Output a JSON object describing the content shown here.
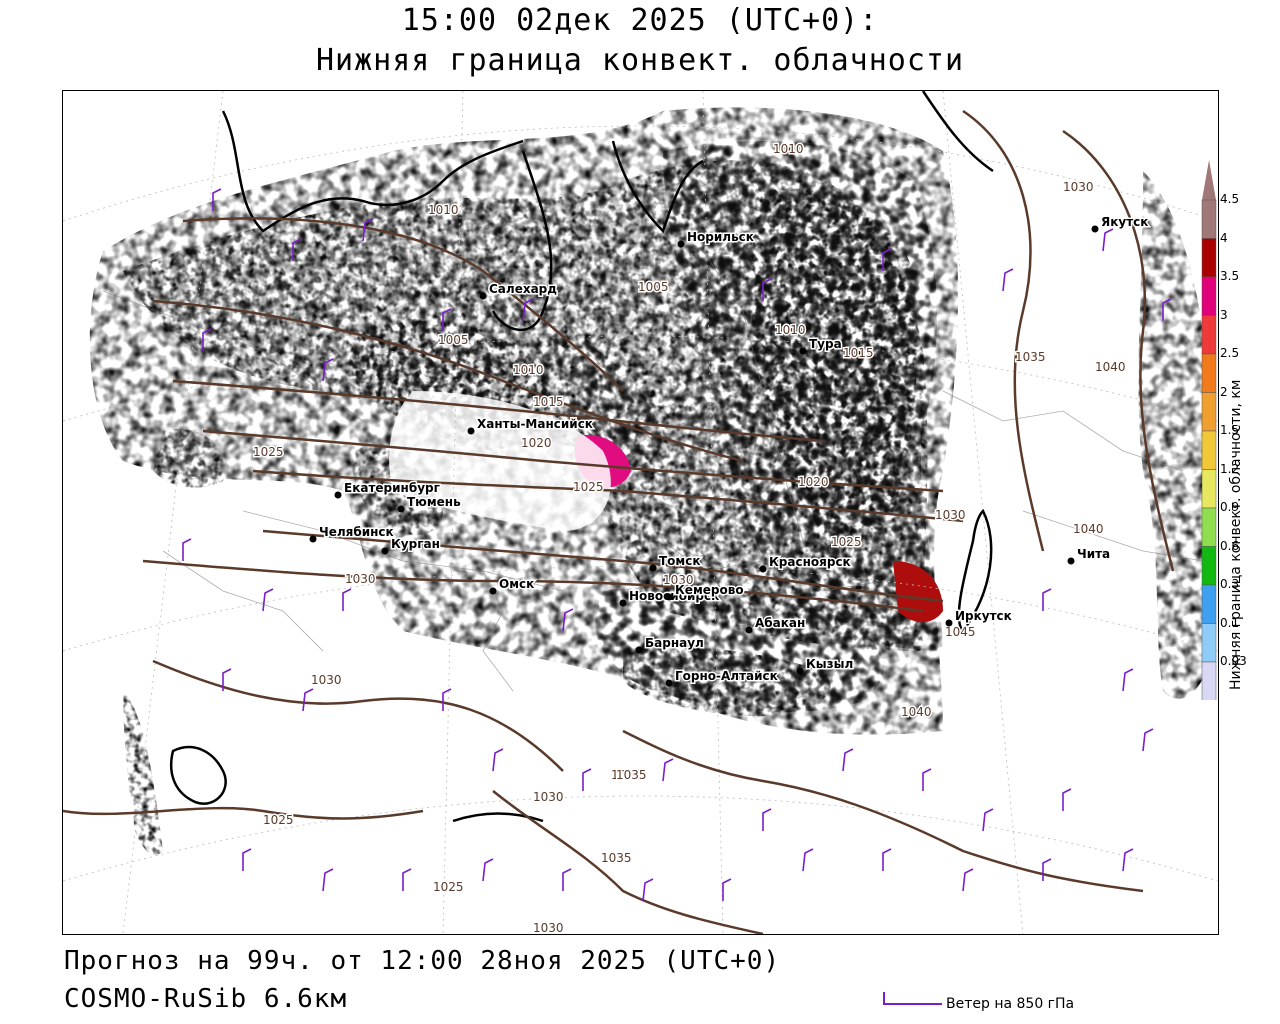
{
  "header": {
    "title": "15:00 02дек 2025 (UTC+0):",
    "subtitle": "Нижняя граница конвект. облачности"
  },
  "legend": {
    "title": "Нижняя граница конвект. облачности, км",
    "ticks": [
      "4.5",
      "4",
      "3.5",
      "3",
      "2.5",
      "2",
      "1.5",
      "1.2",
      "0.9",
      "0.6",
      "0.3",
      "0.1",
      "0.03"
    ],
    "colors": [
      "#a07878",
      "#aa0000",
      "#e0007a",
      "#ee3a3a",
      "#f07a1c",
      "#f0a030",
      "#f0c838",
      "#e8e860",
      "#90dd50",
      "#10b810",
      "#40a0f0",
      "#90ccf8",
      "#d8d8f4"
    ]
  },
  "cities": [
    {
      "name": "Норильск"
    },
    {
      "name": "Якутск"
    },
    {
      "name": "Салехард"
    },
    {
      "name": "Тура"
    },
    {
      "name": "Ханты-Мансийск"
    },
    {
      "name": "Екатеринбург"
    },
    {
      "name": "Тюмень"
    },
    {
      "name": "Челябинск"
    },
    {
      "name": "Курган"
    },
    {
      "name": "Омск"
    },
    {
      "name": "Новосибирск"
    },
    {
      "name": "Томск"
    },
    {
      "name": "Кемерово"
    },
    {
      "name": "Красноярск"
    },
    {
      "name": "Абакан"
    },
    {
      "name": "Барнаул"
    },
    {
      "name": "Горно-Алтайск"
    },
    {
      "name": "Кызыл"
    },
    {
      "name": "Иркутск"
    },
    {
      "name": "Чита"
    }
  ],
  "isobars": [
    "1010",
    "1010",
    "1005",
    "1005",
    "1010",
    "1010",
    "1015",
    "1015",
    "1020",
    "1025",
    "1025",
    "1030",
    "1030",
    "1030",
    "1030",
    "1035",
    "1035",
    "1040",
    "1040",
    "1040",
    "1045",
    "1035",
    "1030",
    "1025",
    "1035",
    "1030",
    "1025",
    "1030",
    "1020",
    "1025"
  ],
  "footer": {
    "forecast": "Прогноз на 99ч. от 12:00 28ноя 2025 (UTC+0)",
    "model": "COSMO-RuSib 6.6км",
    "wind_label": "Ветер на 850 гПа"
  }
}
